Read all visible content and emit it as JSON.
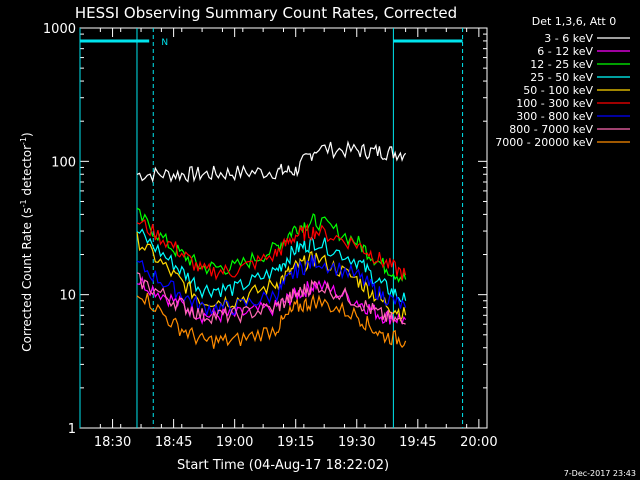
{
  "chart_data": {
    "type": "line",
    "title": "HESSI Observing Summary Count Rates, Corrected",
    "xlabel": "Start Time (04-Aug-17 18:22:02)",
    "ylabel_pre": "Corrected Count Rate (s",
    "ylabel_sup": "-1",
    "ylabel_mid": " detector",
    "ylabel_sup2": "-1",
    "ylabel_post": ")",
    "y_scale": "log",
    "ylim": [
      1,
      1000
    ],
    "xlim": [
      "18:22",
      "20:02"
    ],
    "x_ticks": [
      "18:30",
      "18:45",
      "19:00",
      "19:15",
      "19:30",
      "19:45",
      "20:00"
    ],
    "y_ticks": [
      "1",
      "10",
      "100",
      "1000"
    ],
    "legend_title": "Det 1,3,6, Att 0",
    "legend_position": "right",
    "footer": "7-Dec-2017 23:43",
    "night_marker": "N",
    "night_bar_color": "#00e5ee",
    "x_data": [
      "18:36",
      "18:45",
      "18:52",
      "19:00",
      "19:10",
      "19:15",
      "19:20",
      "19:30",
      "19:36",
      "19:42"
    ],
    "series": [
      {
        "name": "3 - 6 keV",
        "color": "#ffffff",
        "values": [
          80,
          80,
          80,
          82,
          84,
          85,
          125,
          120,
          118,
          115
        ]
      },
      {
        "name": "6 - 12 keV",
        "color": "#ff00ff",
        "values": [
          13,
          9,
          7,
          7,
          8,
          10,
          12,
          9,
          7,
          6.5
        ]
      },
      {
        "name": "12 - 25 keV",
        "color": "#00ff00",
        "values": [
          40,
          22,
          16,
          16,
          22,
          32,
          36,
          25,
          17,
          13
        ]
      },
      {
        "name": "25 - 50 keV",
        "color": "#00ffff",
        "values": [
          30,
          17,
          11,
          11,
          15,
          22,
          25,
          18,
          12,
          9
        ]
      },
      {
        "name": "50 - 100 keV",
        "color": "#ffd700",
        "values": [
          26,
          14,
          9,
          9,
          12,
          16,
          19,
          13,
          9,
          7
        ]
      },
      {
        "name": "100 - 300 keV",
        "color": "#ff0000",
        "values": [
          36,
          23,
          15,
          15,
          20,
          28,
          30,
          24,
          18,
          14
        ]
      },
      {
        "name": "300 - 800 keV",
        "color": "#0000ff",
        "values": [
          17,
          11,
          8,
          8,
          10,
          15,
          18,
          14,
          10,
          8
        ]
      },
      {
        "name": "800 - 7000 keV",
        "color": "#ff69b4",
        "values": [
          13,
          9,
          7,
          7,
          8,
          10,
          12,
          9,
          7,
          6
        ]
      },
      {
        "name": "7000 - 20000 keV",
        "color": "#ff8c00",
        "values": [
          11,
          6,
          4.5,
          4.5,
          5.5,
          8,
          9,
          7,
          5,
          4.5
        ]
      }
    ]
  }
}
